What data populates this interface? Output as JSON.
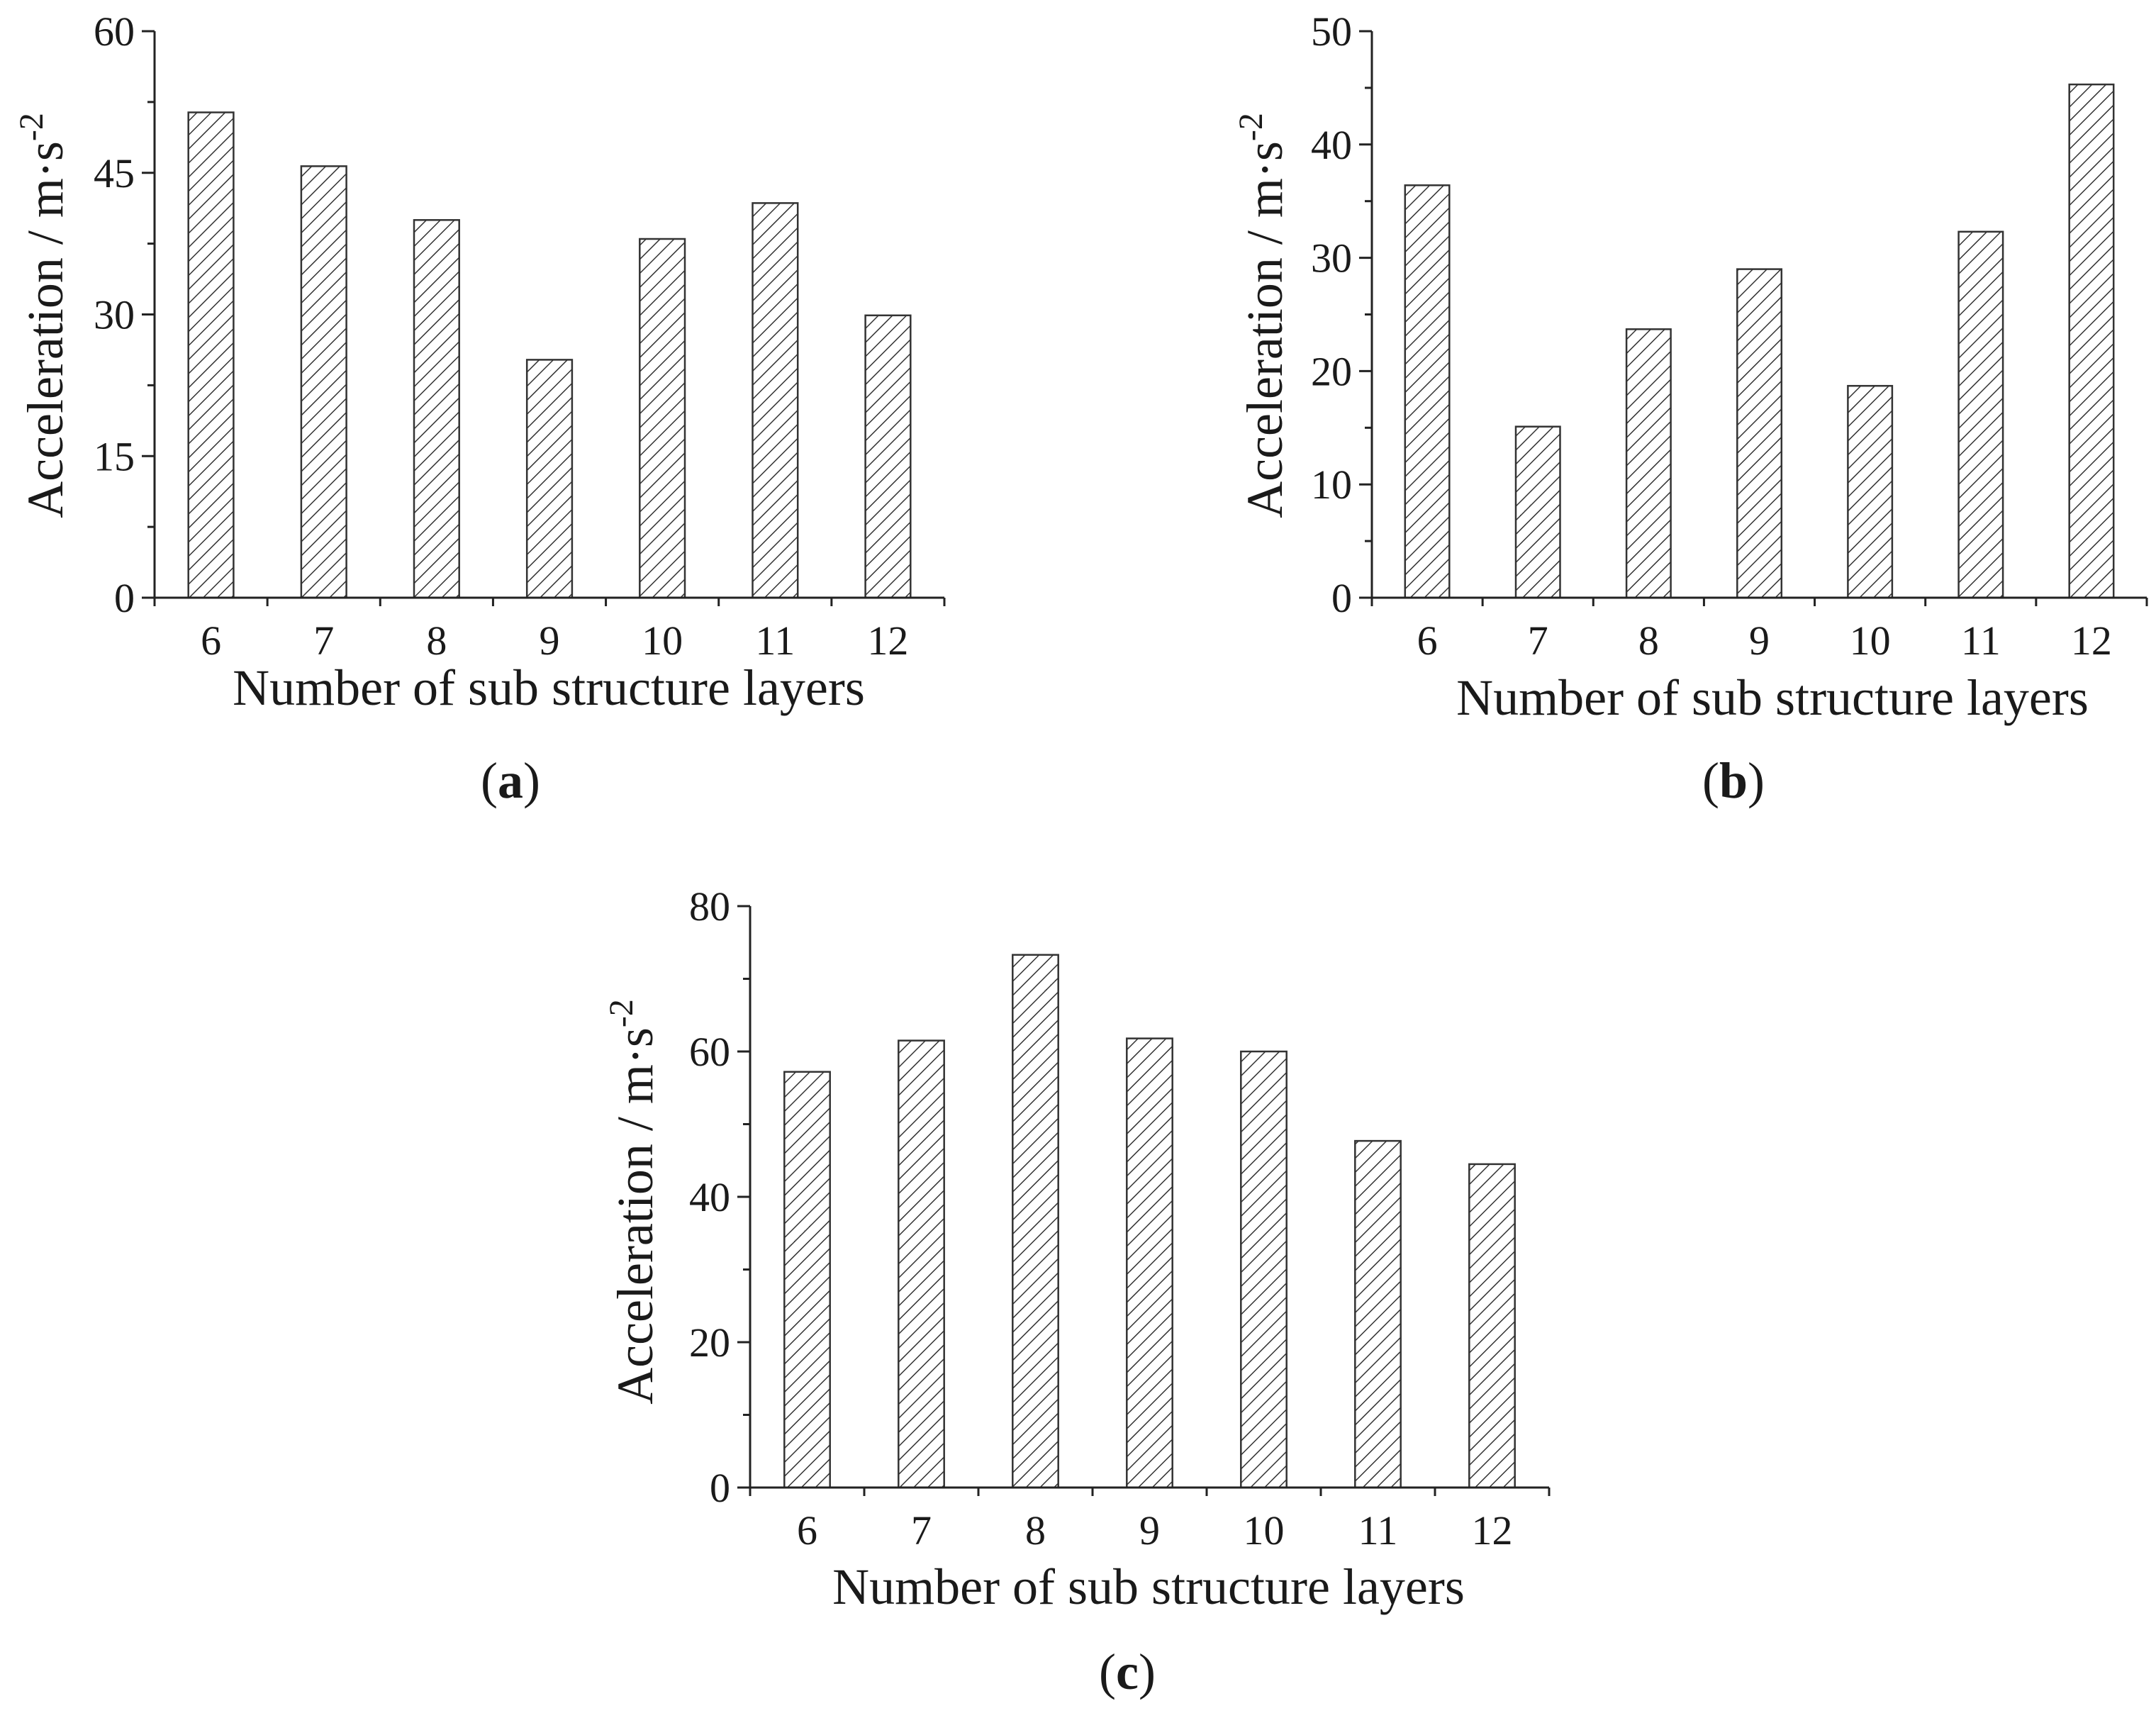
{
  "chart_data": [
    {
      "type": "bar",
      "panel_label": "a",
      "categories": [
        "6",
        "7",
        "8",
        "9",
        "10",
        "11",
        "12"
      ],
      "values": [
        51.4,
        45.7,
        40.0,
        25.2,
        38.0,
        41.8,
        29.9
      ],
      "xlabel": "Number of sub structure layers",
      "ylabel": "Acceleration / m·s",
      "ylabel_sup": "-2",
      "ylim": [
        0,
        60
      ],
      "yticks": [
        "0",
        "15",
        "30",
        "45",
        "60"
      ],
      "grid": false,
      "bar_fill": "hatched"
    },
    {
      "type": "bar",
      "panel_label": "b",
      "categories": [
        "6",
        "7",
        "8",
        "9",
        "10",
        "11",
        "12"
      ],
      "values": [
        36.4,
        15.1,
        23.7,
        29.0,
        18.7,
        32.3,
        45.3
      ],
      "xlabel": "Number of sub structure layers",
      "ylabel": "Acceleration / m·s",
      "ylabel_sup": "-2",
      "ylim": [
        0,
        50
      ],
      "yticks": [
        "0",
        "10",
        "20",
        "30",
        "40",
        "50"
      ],
      "grid": false,
      "bar_fill": "hatched"
    },
    {
      "type": "bar",
      "panel_label": "c",
      "categories": [
        "6",
        "7",
        "8",
        "9",
        "10",
        "11",
        "12"
      ],
      "values": [
        57.2,
        61.5,
        73.3,
        61.8,
        60.0,
        47.7,
        44.5
      ],
      "xlabel": "Number of sub structure layers",
      "ylabel": "Acceleration / m·s",
      "ylabel_sup": "-2",
      "ylim": [
        0,
        80
      ],
      "yticks": [
        "0",
        "20",
        "40",
        "60",
        "80"
      ],
      "grid": false,
      "bar_fill": "hatched"
    }
  ],
  "colors": {
    "bar_stroke": "#333333",
    "hatch": "#333333",
    "axis": "#222222",
    "background": "#ffffff"
  }
}
